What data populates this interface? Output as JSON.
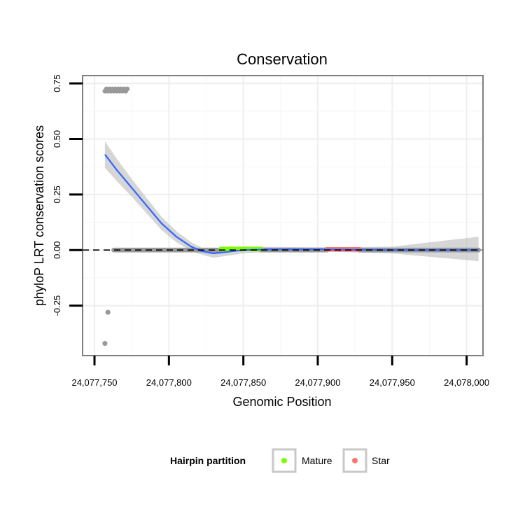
{
  "chart_data": {
    "type": "scatter",
    "title": "Conservation",
    "xlabel": "Genomic Position",
    "ylabel": "phyloP LRT conservation scores",
    "xlim": [
      24077742,
      24078011
    ],
    "ylim": [
      -0.475,
      0.785
    ],
    "x_ticks": [
      24077750,
      24077800,
      24077850,
      24077900,
      24077950,
      24078000
    ],
    "x_tick_labels": [
      "24,077,750",
      "24,077,800",
      "24,077,850",
      "24,077,900",
      "24,077,950",
      "24,078,000"
    ],
    "y_ticks": [
      -0.25,
      0.0,
      0.25,
      0.5,
      0.75
    ],
    "y_tick_labels": [
      "-0.25",
      "0.00",
      "0.25",
      "0.50",
      "0.75"
    ],
    "grid": true,
    "reference_line": {
      "y": 0,
      "style": "dashed"
    },
    "legend": {
      "title": "Hairpin partition",
      "position": "bottom",
      "entries": [
        {
          "label": "Mature",
          "color": "#7CFC00"
        },
        {
          "label": "Star",
          "color": "#F8766D"
        }
      ]
    },
    "colors": {
      "other": "#999999",
      "smooth": "#3366FF",
      "ribbon": "#BBBBBB"
    },
    "point_groups": {
      "other_high": {
        "x_start": 24077757,
        "x_end": 24077772,
        "y": 0.72
      },
      "other_low": [
        {
          "x": 24077759,
          "y": -0.28
        },
        {
          "x": 24077757,
          "y": -0.42
        }
      ],
      "other_zero": {
        "x_start": 24077763,
        "x_end": 24077835,
        "y": 0.0
      },
      "mature": {
        "x_start": 24077835,
        "x_end": 24077862,
        "y": 0.005
      },
      "neutral_mid": {
        "x_start": 24077862,
        "x_end": 24077906,
        "y": 0.0
      },
      "star": {
        "x_start": 24077906,
        "x_end": 24077928,
        "y": 0.003
      },
      "neutral_tail": {
        "x_start": 24077928,
        "x_end": 24078008,
        "y": 0.0
      }
    },
    "smooth": {
      "x": [
        24077757,
        24077765,
        24077775,
        24077785,
        24077795,
        24077805,
        24077815,
        24077822,
        24077830,
        24077840,
        24077850,
        24077870,
        24077900,
        24077950,
        24078008
      ],
      "y": [
        0.43,
        0.36,
        0.28,
        0.2,
        0.12,
        0.06,
        0.015,
        -0.005,
        -0.015,
        -0.008,
        0.0,
        0.003,
        0.003,
        0.0,
        0.0
      ],
      "low": [
        0.37,
        0.31,
        0.24,
        0.165,
        0.09,
        0.035,
        -0.005,
        -0.02,
        -0.035,
        -0.025,
        -0.015,
        -0.008,
        -0.006,
        -0.015,
        -0.05
      ],
      "high": [
        0.49,
        0.41,
        0.32,
        0.235,
        0.15,
        0.085,
        0.035,
        0.01,
        0.005,
        0.01,
        0.015,
        0.014,
        0.012,
        0.015,
        0.06
      ]
    }
  }
}
